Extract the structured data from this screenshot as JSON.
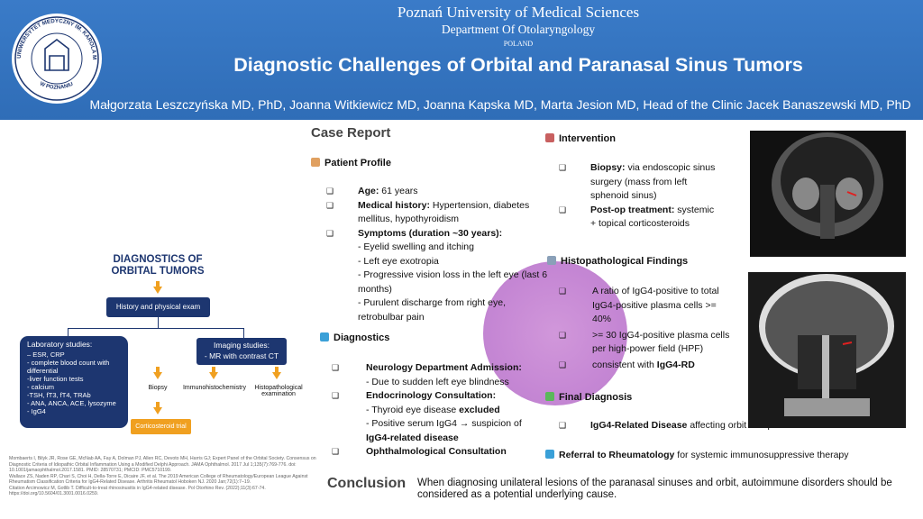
{
  "header": {
    "logo_text": "UNIWERSYTET MEDYCZNY IM. KAROLA MARCINKOWSKIEGO",
    "logo_city": "W POZNANIU",
    "university": "Poznań University of Medical Sciences",
    "department": "Department Of Otolaryngology",
    "country": "POLAND",
    "title": "Diagnostic Challenges of Orbital and Paranasal Sinus Tumors",
    "authors": "Małgorzata Leszczyńska MD, PhD, Joanna Witkiewicz MD, Joanna Kapska MD, Marta Jesion MD, Head of the Clinic Jacek Banaszewski MD, PhD"
  },
  "flowchart": {
    "title": [
      "DIAGNOSTICS OF",
      "ORBITAL TUMORS"
    ],
    "history": "History and physical exam",
    "lab_title": "Laboratory studies:",
    "lab_items": [
      "– ESR, CRP",
      "- complete blood count with differential",
      "-liver function tests",
      "- calcium",
      "-TSH, fT3, fT4, TRAb",
      "- ANA, ANCA, ACE, lysozyme",
      "- IgG4"
    ],
    "imaging_title": "Imaging studies:",
    "imaging_item": "- MR with contrast CT",
    "biopsy": "Biopsy",
    "ihc": "Immunohistochemistry",
    "histo": "Histopathological examination",
    "trial": "Corticosteroid trial"
  },
  "references": [
    "Mombaerts I, Bilyk JR, Rose GE, McNab AA, Fay A, Dolman PJ, Allen RC, Devoto MH, Harris GJ; Expert Panel of the Orbital Society. Consensus on Diagnostic Criteria of Idiopathic Orbital Inflammation Using a Modified Delphi Approach. JAMA Ophthalmol. 2017 Jul 1;135(7):769-776. doi: 10.1001/jamaophthalmol.2017.1581. PMID: 28570731; PMCID: PMC5710199.",
    "Wallace ZS, Naden RP, Chari S, Choi H, Della-Torre E, Dicaire JF, et al. The 2019 American College of Rheumatology/European League Against Rheumatism Classification Criteria for IgG4-Related Disease. Arthritis Rheumatol Hoboken NJ. 2020 Jan;72(1):7–19.",
    "Citation Arcimowicz M, Gotlib T. Difficult-to-treat rhinosinusitis in IgG4-related disease. Pol Otorhino Rev. (2022);11(3):67-74. https://doi.org/10.5604/01.3001.0016.0259."
  ],
  "case_report": {
    "title": "Case Report",
    "patient": {
      "heading": "Patient Profile",
      "age": {
        "label": "Age:",
        "text": "61 years"
      },
      "history": {
        "label": "Medical history:",
        "text": "Hypertension, diabetes mellitus, hypothyroidism"
      },
      "symptoms": {
        "label": "Symptoms (duration ~30 years):",
        "items": [
          "- Eyelid swelling and itching",
          "- Left eye exotropia",
          "- Progressive vision loss in the left eye (last  6 months)",
          "- Purulent discharge from right eye, retrobulbar pain"
        ]
      }
    },
    "diagnostics": {
      "heading": "Diagnostics",
      "neuro": {
        "label": "Neurology Department Admission:",
        "item": "- Due to sudden left eye blindness"
      },
      "endo": {
        "label": "Endocrinology Consultation:",
        "item1": "- Thyroid eye disease",
        "item1_bold": "excluded",
        "item2": "- Positive serum IgG4 → suspicion of",
        "item2_bold": "IgG4-related disease"
      },
      "ophth": {
        "label": "Ophthalmological Consultation"
      }
    },
    "intervention": {
      "heading": "Intervention",
      "biopsy": {
        "label": "Biopsy:",
        "text": "via endoscopic sinus surgery (mass from left sphenoid sinus)"
      },
      "postop": {
        "label": "Post-op treatment:",
        "text": "systemic + topical corticosteroids"
      }
    },
    "histopathology": {
      "heading": "Histopathological Findings",
      "items": [
        "A ratio of IgG4-positive to total IgG4-positive plasma cells >= 40%",
        ">= 30 IgG4-positive plasma cells per high-power field (HPF)"
      ],
      "last": "consistent with",
      "last_bold": "IgG4-RD"
    },
    "final": {
      "heading": "Final Diagnosis",
      "label": "IgG4-Related Disease",
      "text": "affecting orbit and paranasal sinuses"
    },
    "referral": {
      "label": "Referral to Rheumatology",
      "text": "for systemic immunosuppressive therapy"
    }
  },
  "conclusion": {
    "heading": "Conclusion",
    "text": "When diagnosing unilateral lesions of the paranasal sinuses and orbit, autoimmune disorders should be considered as a potential underlying cause."
  }
}
